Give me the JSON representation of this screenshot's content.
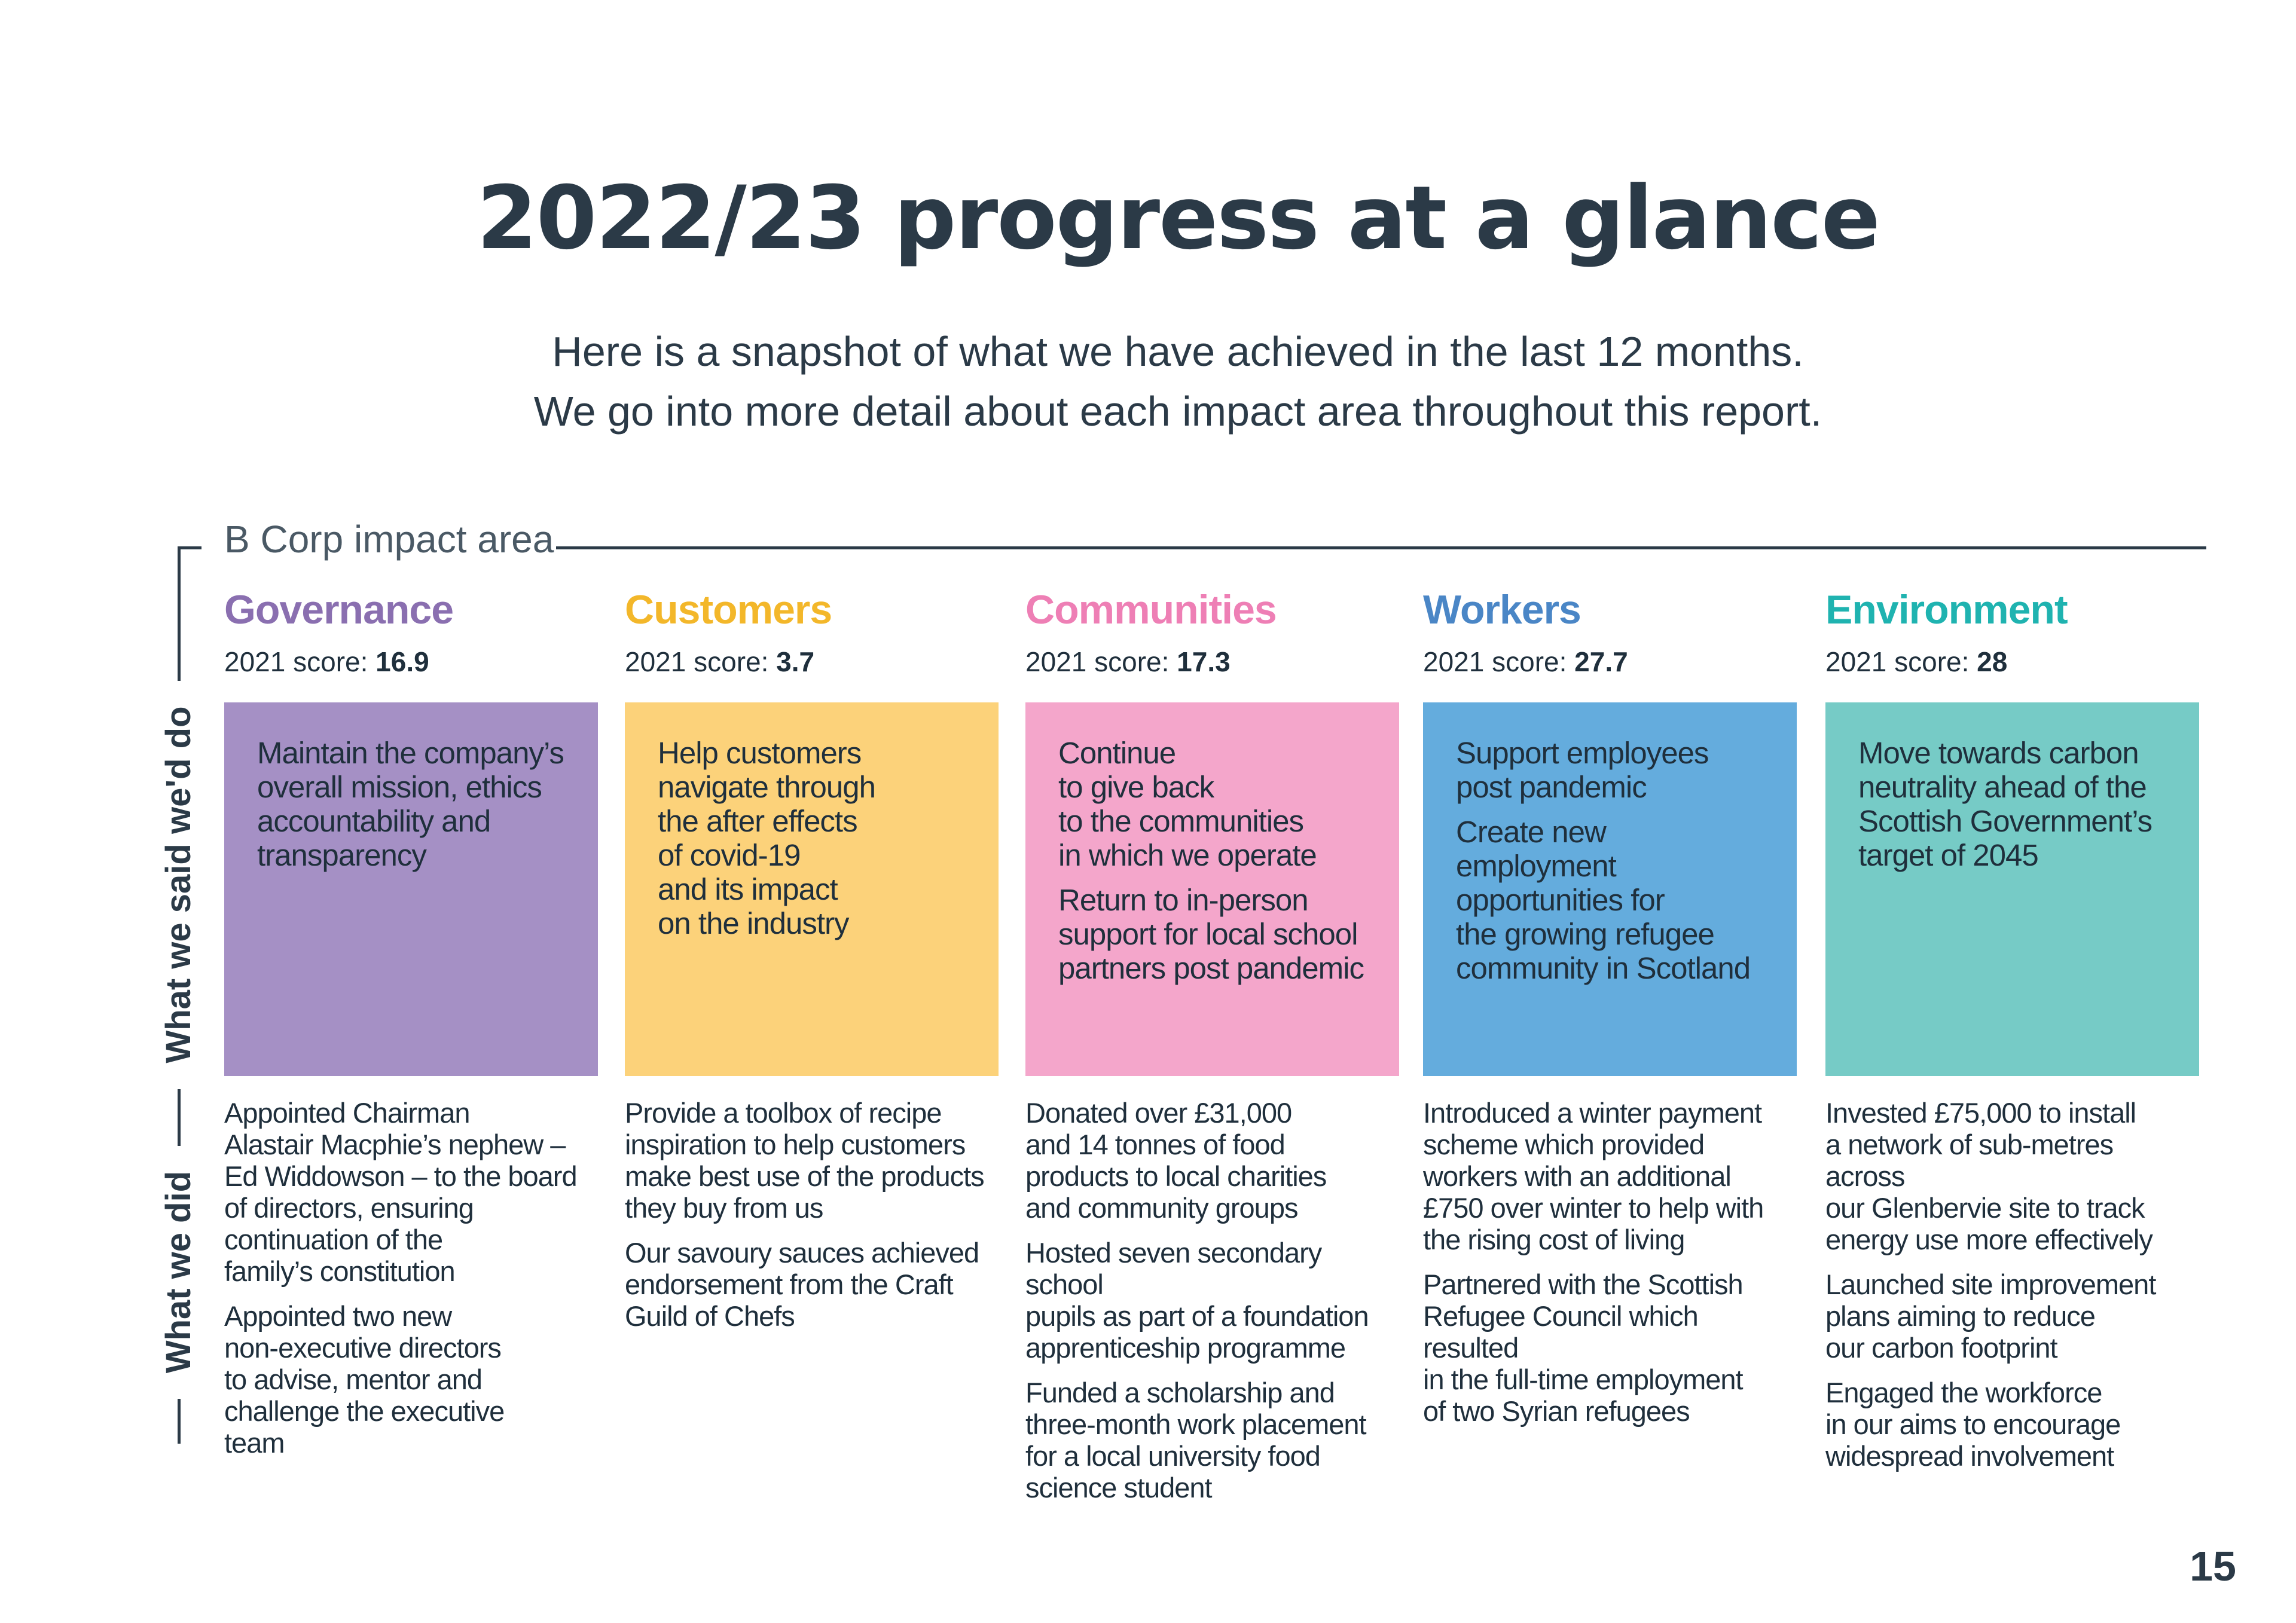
{
  "page": {
    "title": "2022/23 progress at a glance",
    "subtitle_line1": "Here is a snapshot of what we have achieved in the last 12 months.",
    "subtitle_line2": "We go into more detail about each impact area throughout this report.",
    "impact_area_label": "B Corp impact area",
    "said_label": "What we said we'd do",
    "did_label": "What we did",
    "score_prefix": "2021 score:",
    "page_number": "15"
  },
  "areas": [
    {
      "name": "Governance",
      "color": "#8a6fb0",
      "box_color": "#a590c5",
      "score": "16.9",
      "said": [
        "Maintain the company’s\noverall mission, ethics\naccountability and\ntransparency"
      ],
      "did": [
        "Appointed Chairman\nAlastair Macphie’s nephew –\nEd Widdowson – to the board\nof directors, ensuring\ncontinuation of the\nfamily’s constitution",
        "Appointed two new\nnon-executive directors\nto advise, mentor and\nchallenge the executive\nteam"
      ]
    },
    {
      "name": "Customers",
      "color": "#f3b72a",
      "box_color": "#fcd27a",
      "score": "3.7",
      "said": [
        "Help customers\nnavigate through\nthe after effects\nof covid-19\nand its impact\non the industry"
      ],
      "did": [
        "Provide a toolbox of recipe\ninspiration to help customers\nmake best use of the products\nthey buy from us",
        "Our savoury sauces achieved\nendorsement from the Craft\nGuild of Chefs"
      ]
    },
    {
      "name": "Communities",
      "color": "#ee7fb5",
      "box_color": "#f4a6cb",
      "score": "17.3",
      "said": [
        "Continue\nto give back\nto the communities\nin which we operate",
        "Return to in-person\nsupport for local school\npartners post pandemic"
      ],
      "did": [
        "Donated over £31,000\nand 14 tonnes of food\nproducts to local charities\nand community groups",
        "Hosted seven secondary school\npupils as part of a foundation\napprenticeship programme",
        "Funded a scholarship and\nthree-month work placement\nfor a local university food\nscience student"
      ]
    },
    {
      "name": "Workers",
      "color": "#4a86c6",
      "box_color": "#64acdd",
      "score": "27.7",
      "said": [
        "Support employees\npost pandemic",
        "Create new employment\nopportunities for\nthe growing refugee\ncommunity in Scotland"
      ],
      "did": [
        "Introduced a winter payment\nscheme which provided\nworkers with an additional\n£750 over winter to help with\nthe rising cost of living",
        "Partnered with the Scottish\nRefugee Council which resulted\nin the full-time employment\nof two Syrian refugees"
      ]
    },
    {
      "name": "Environment",
      "color": "#1fb3b0",
      "box_color": "#76cbc6",
      "score": "28",
      "said": [
        "Move towards carbon\nneutrality ahead of the\nScottish Government’s\ntarget of 2045"
      ],
      "did": [
        "Invested £75,000 to install\na network of sub-metres across\nour Glenbervie site to track\nenergy use more effectively",
        "Launched site improvement\nplans aiming to reduce\nour carbon footprint",
        "Engaged the workforce\nin our aims to encourage\nwidespread involvement"
      ]
    }
  ]
}
